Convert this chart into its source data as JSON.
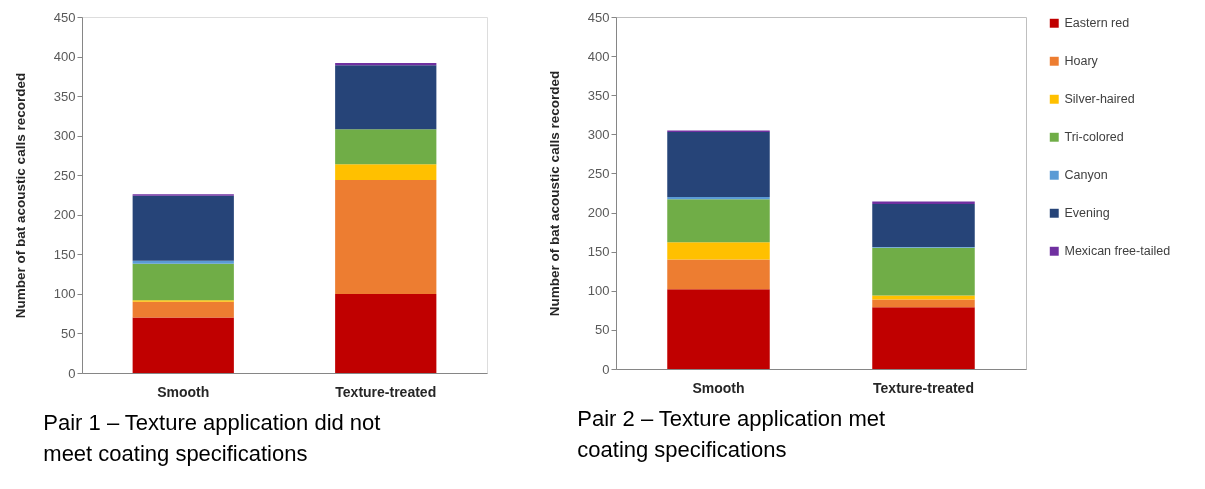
{
  "chart_data": [
    {
      "type": "bar",
      "stacked": true,
      "title": "Pair 1 – Texture application did not meet coating specifications",
      "ylabel": "Number of bat acoustic calls recorded",
      "categories": [
        "Smooth",
        "Texture-treated"
      ],
      "ylim": [
        0,
        450
      ],
      "yticks": [
        0,
        50,
        100,
        150,
        200,
        250,
        300,
        350,
        400,
        450
      ],
      "grid": false,
      "legend": false,
      "series": [
        {
          "color": "#c00000",
          "values": [
            70,
            100
          ]
        },
        {
          "color": "#ed7d31",
          "values": [
            20,
            144
          ]
        },
        {
          "color": "#ffc000",
          "values": [
            2,
            20
          ]
        },
        {
          "color": "#70ad47",
          "values": [
            46,
            44
          ]
        },
        {
          "color": "#5b9bd5",
          "values": [
            4,
            0
          ]
        },
        {
          "color": "#264478",
          "values": [
            82,
            81
          ]
        },
        {
          "color": "#7030a0",
          "values": [
            2,
            3
          ]
        }
      ]
    },
    {
      "type": "bar",
      "stacked": true,
      "title": "Pair 2 – Texture application met coating specifications",
      "ylabel": "Number of bat acoustic calls recorded",
      "categories": [
        "Smooth",
        "Texture-treated"
      ],
      "ylim": [
        0,
        450
      ],
      "yticks": [
        0,
        50,
        100,
        150,
        200,
        250,
        300,
        350,
        400,
        450
      ],
      "grid": false,
      "legend": "right",
      "series": [
        {
          "name": "Eastern red",
          "color": "#c00000",
          "values": [
            102,
            79
          ]
        },
        {
          "name": "Hoary",
          "color": "#ed7d31",
          "values": [
            38,
            10
          ]
        },
        {
          "name": "Silver-haired",
          "color": "#ffc000",
          "values": [
            22,
            5
          ]
        },
        {
          "name": "Tri-colored",
          "color": "#70ad47",
          "values": [
            55,
            61
          ]
        },
        {
          "name": "Canyon",
          "color": "#5b9bd5",
          "values": [
            3,
            1
          ]
        },
        {
          "name": "Evening",
          "color": "#264478",
          "values": [
            83,
            55
          ]
        },
        {
          "name": "Mexican free-tailed",
          "color": "#7030a0",
          "values": [
            2,
            3
          ]
        }
      ]
    }
  ]
}
